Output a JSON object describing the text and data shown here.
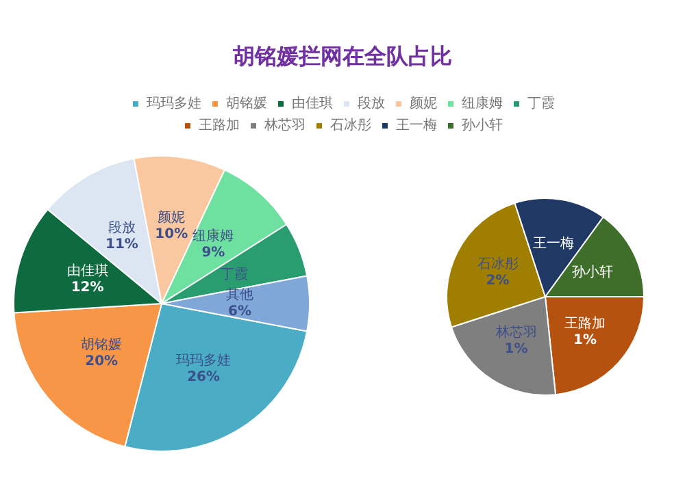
{
  "chart_data": [
    {
      "type": "pie",
      "title": "胡铭媛拦网在全队占比",
      "legend": "top",
      "categories": [
        "玛玛多娃",
        "胡铭媛",
        "由佳琪",
        "段放",
        "颜妮",
        "纽康姆",
        "丁霞",
        "其他"
      ],
      "values": [
        26,
        20,
        12,
        11,
        10,
        9,
        6,
        6
      ],
      "colors": [
        "#4bacc6",
        "#f79646",
        "#0d6b3f",
        "#dce6f2",
        "#fac8a0",
        "#6ee0a0",
        "#2a9d70",
        "#7fa7d8"
      ],
      "value_labels": [
        "26%",
        "20%",
        "12%",
        "11%",
        "10%",
        "9%",
        null,
        "6%"
      ]
    },
    {
      "type": "pie",
      "legend": "top",
      "categories": [
        "王路加",
        "林芯羽",
        "石冰彤",
        "王一梅",
        "孙小轩"
      ],
      "values": [
        1.4,
        1.3,
        1.5,
        0.9,
        0.9
      ],
      "colors": [
        "#b5520f",
        "#7f7f7f",
        "#a07e00",
        "#1f3864",
        "#3f6e2a"
      ],
      "value_labels": [
        "1%",
        "1%",
        "2%",
        null,
        null
      ]
    }
  ]
}
